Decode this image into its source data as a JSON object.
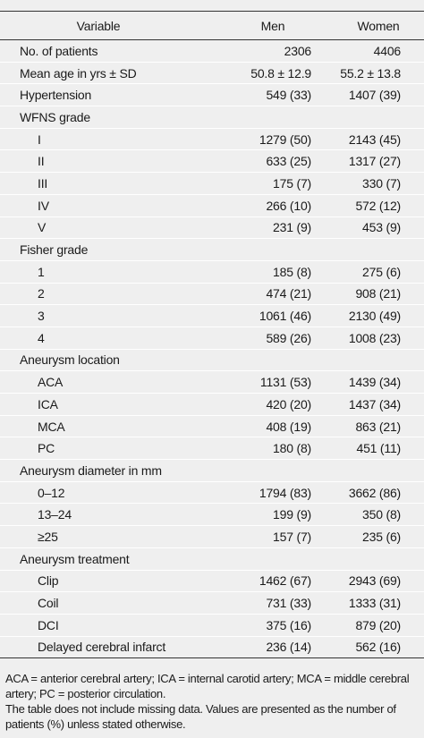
{
  "table": {
    "header": [
      "Variable",
      "Men",
      "Women"
    ],
    "rows": [
      {
        "label": "No. of patients",
        "men": "2306",
        "women": "4406",
        "indent": false
      },
      {
        "label": "Mean age in yrs ± SD",
        "men": "50.8 ± 12.9",
        "women": "55.2 ± 13.8",
        "indent": false
      },
      {
        "label": "Hypertension",
        "men": "549 (33)",
        "women": "1407 (39)",
        "indent": false
      },
      {
        "label": "WFNS grade",
        "indent": false
      },
      {
        "label": "I",
        "men": "1279 (50)",
        "women": "2143 (45)",
        "indent": true
      },
      {
        "label": "II",
        "men": "633 (25)",
        "women": "1317 (27)",
        "indent": true
      },
      {
        "label": "III",
        "men": "175 (7)",
        "women": "330 (7)",
        "indent": true
      },
      {
        "label": "IV",
        "men": "266 (10)",
        "women": "572 (12)",
        "indent": true
      },
      {
        "label": "V",
        "men": "231 (9)",
        "women": "453 (9)",
        "indent": true
      },
      {
        "label": "Fisher grade",
        "indent": false
      },
      {
        "label": "1",
        "men": "185 (8)",
        "women": "275 (6)",
        "indent": true
      },
      {
        "label": "2",
        "men": "474 (21)",
        "women": "908 (21)",
        "indent": true
      },
      {
        "label": "3",
        "men": "1061 (46)",
        "women": "2130 (49)",
        "indent": true
      },
      {
        "label": "4",
        "men": "589 (26)",
        "women": "1008 (23)",
        "indent": true
      },
      {
        "label": "Aneurysm location",
        "indent": false
      },
      {
        "label": "ACA",
        "men": "1131 (53)",
        "women": "1439 (34)",
        "indent": true
      },
      {
        "label": "ICA",
        "men": "420 (20)",
        "women": "1437 (34)",
        "indent": true
      },
      {
        "label": "MCA",
        "men": "408 (19)",
        "women": "863 (21)",
        "indent": true
      },
      {
        "label": "PC",
        "men": "180 (8)",
        "women": "451 (11)",
        "indent": true
      },
      {
        "label": "Aneurysm diameter in mm",
        "indent": false
      },
      {
        "label": "0–12",
        "men": "1794 (83)",
        "women": "3662 (86)",
        "indent": true
      },
      {
        "label": "13–24",
        "men": "199 (9)",
        "women": "350 (8)",
        "indent": true
      },
      {
        "label": "≥25",
        "men": "157 (7)",
        "women": "235 (6)",
        "indent": true
      },
      {
        "label": "Aneurysm treatment",
        "indent": false
      },
      {
        "label": "Clip",
        "men": "1462 (67)",
        "women": "2943 (69)",
        "indent": true
      },
      {
        "label": "Coil",
        "men": "731 (33)",
        "women": "1333 (31)",
        "indent": true
      },
      {
        "label": "DCI",
        "men": "375 (16)",
        "women": "879 (20)",
        "indent": true
      },
      {
        "label": "Delayed cerebral infarct",
        "men": "236 (14)",
        "women": "562 (16)",
        "indent": true
      }
    ]
  },
  "footnotes": [
    "ACA = anterior cerebral artery; ICA = internal carotid artery; MCA = middle cerebral artery; PC = posterior circulation.",
    "The table does not include missing data. Values are presented as the number of patients (%) unless stated otherwise."
  ]
}
